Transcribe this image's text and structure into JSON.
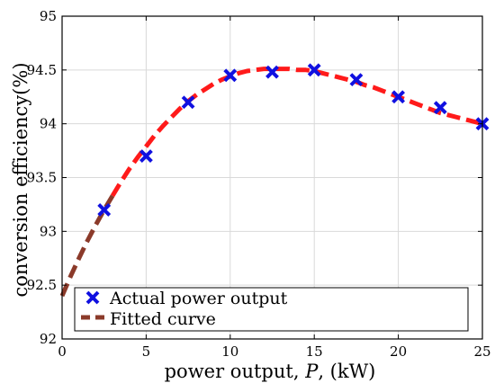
{
  "chart_data": {
    "type": "line",
    "xlabel": {
      "prefix": "power output, ",
      "var": "P",
      "suffix": ", (kW)"
    },
    "ylabel": "conversion efficiency(%)",
    "xlim": [
      0,
      25
    ],
    "ylim": [
      92,
      95
    ],
    "xticks": [
      0,
      5,
      10,
      15,
      20,
      25
    ],
    "yticks": [
      92,
      92.5,
      93,
      93.5,
      94,
      94.5,
      95
    ],
    "xtick_labels": [
      "0",
      "5",
      "10",
      "15",
      "20",
      "25"
    ],
    "ytick_labels": [
      "92",
      "92.5",
      "93",
      "93.5",
      "94",
      "94.5",
      "95"
    ],
    "grid": true,
    "legend_position": "bottom",
    "series": [
      {
        "name": "Actual power output",
        "style": "markers",
        "marker": "x",
        "color": "#1010e0",
        "x": [
          2.5,
          5,
          7.5,
          10,
          12.5,
          15,
          17.5,
          20,
          22.5,
          25
        ],
        "y": [
          93.2,
          93.7,
          94.2,
          94.45,
          94.48,
          94.5,
          94.41,
          94.25,
          94.15,
          94.0
        ]
      },
      {
        "name": "Fitted curve",
        "style": "dashed-line",
        "colors": {
          "left": "#8b3a2a",
          "right": "#ff1a1a"
        },
        "x": [
          0,
          0.5,
          1,
          1.5,
          2,
          2.5,
          3,
          3.5,
          4,
          4.5,
          5,
          5.5,
          6,
          6.5,
          7,
          7.5,
          8,
          8.5,
          9,
          9.5,
          10,
          10.5,
          11,
          11.5,
          12,
          12.5,
          13,
          13.5,
          14,
          14.5,
          15,
          15.5,
          16,
          16.5,
          17,
          17.5,
          18,
          18.5,
          19,
          19.5,
          20,
          20.5,
          21,
          21.5,
          22,
          22.5,
          23,
          23.5,
          24,
          24.5,
          25
        ],
        "y": [
          92.4,
          92.58,
          92.75,
          92.91,
          93.06,
          93.2,
          93.33,
          93.46,
          93.58,
          93.69,
          93.79,
          93.89,
          93.98,
          94.06,
          94.14,
          94.21,
          94.27,
          94.32,
          94.37,
          94.41,
          94.44,
          94.47,
          94.49,
          94.5,
          94.51,
          94.51,
          94.51,
          94.51,
          94.5,
          94.5,
          94.49,
          94.47,
          94.45,
          94.43,
          94.41,
          94.39,
          94.36,
          94.34,
          94.31,
          94.28,
          94.25,
          94.22,
          94.19,
          94.16,
          94.13,
          94.1,
          94.08,
          94.06,
          94.04,
          94.02,
          94.0
        ]
      }
    ]
  }
}
